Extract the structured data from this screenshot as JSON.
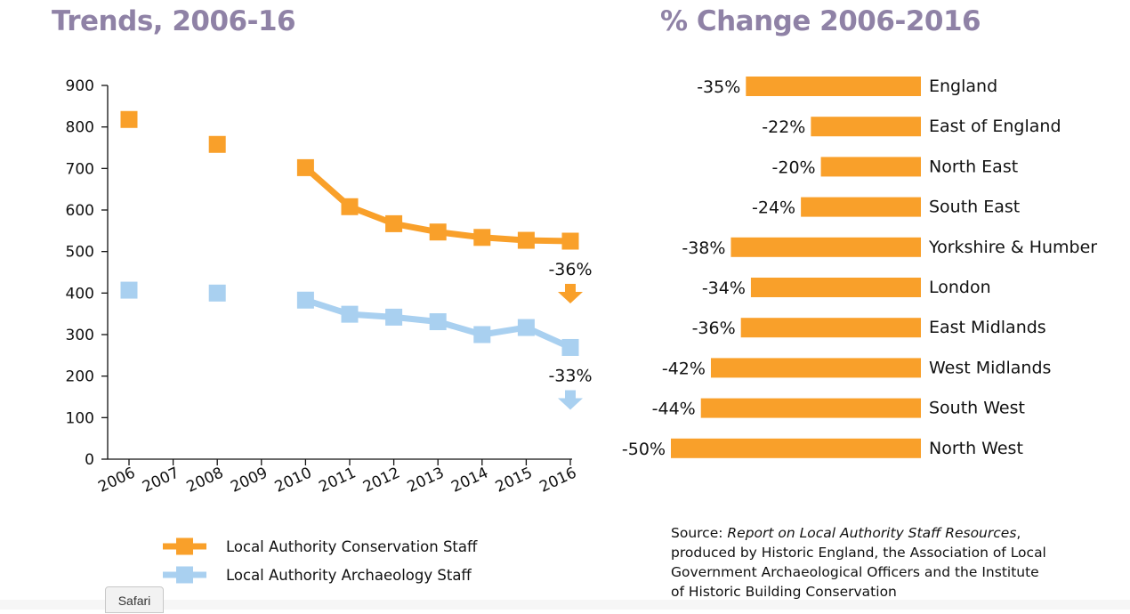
{
  "left_chart": {
    "title": "Trends, 2006-16"
  },
  "right_chart": {
    "title": "% Change 2006-2016"
  },
  "source": {
    "prefix": "Source: ",
    "report_title": "Report on Local Authority Staff Resources",
    "rest": ", produced by Historic England, the Association of Local Government Archaeological Officers and the Institute of Historic Building Conservation"
  },
  "safari_label": "Safari",
  "colors": {
    "title": "#8f82a6",
    "conservation": "#f9a02a",
    "archaeology": "#a9d0f0",
    "bar": "#f9a02a"
  },
  "chart_data": [
    {
      "type": "line",
      "title": "Trends, 2006-16",
      "x": [
        "2006",
        "2007",
        "2008",
        "2009",
        "2010",
        "2011",
        "2012",
        "2013",
        "2014",
        "2015",
        "2016"
      ],
      "ylim": [
        0,
        900
      ],
      "yticks": [
        0,
        100,
        200,
        300,
        400,
        500,
        600,
        700,
        800,
        900
      ],
      "grid": false,
      "legend": "bottom",
      "series": [
        {
          "name": "Local Authority Conservation Staff",
          "color": "#f9a02a",
          "values": [
            818,
            null,
            758,
            null,
            702,
            608,
            567,
            547,
            534,
            527,
            525
          ],
          "change_label": "-36%",
          "direction": "down"
        },
        {
          "name": "Local Authority Archaeology Staff",
          "color": "#a9d0f0",
          "values": [
            407,
            null,
            400,
            null,
            383,
            349,
            342,
            331,
            300,
            317,
            269
          ],
          "change_label": "-33%",
          "direction": "down"
        }
      ]
    },
    {
      "type": "bar",
      "orientation": "horizontal",
      "title": "% Change 2006-2016",
      "categories": [
        "England",
        "East of England",
        "North East",
        "South East",
        "Yorkshire & Humber",
        "London",
        "East Midlands",
        "West Midlands",
        "South West",
        "North West"
      ],
      "values": [
        -35,
        -22,
        -20,
        -24,
        -38,
        -34,
        -36,
        -42,
        -44,
        -50
      ],
      "value_labels": [
        "-35%",
        "-22%",
        "-20%",
        "-24%",
        "-38%",
        "-34%",
        "-36%",
        "-42%",
        "-44%",
        "-50%"
      ],
      "color": "#f9a02a",
      "grid": false
    }
  ]
}
